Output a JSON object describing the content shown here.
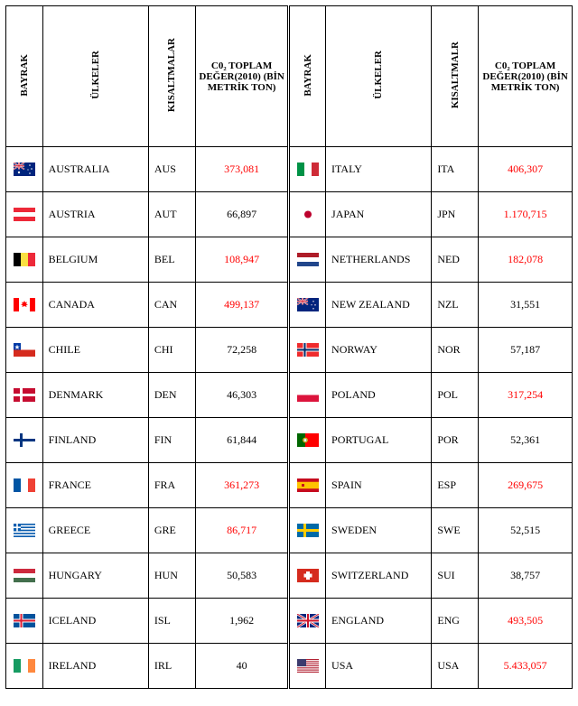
{
  "headers": {
    "flag": "BAYRAK",
    "countries": "ÜLKELER",
    "abbr_left": "KISALTMALAR",
    "abbr_right": "KISALTMALR",
    "value": "C0₂ TOPLAM DEĞER(2010) (BİN METRİK TON)"
  },
  "rows": [
    {
      "l_flag": "AUS",
      "l_country": "AUSTRALIA",
      "l_abbr": "AUS",
      "l_val": "373,081",
      "l_red": true,
      "r_flag": "ITA",
      "r_country": "ITALY",
      "r_abbr": "ITA",
      "r_val": "406,307",
      "r_red": true
    },
    {
      "l_flag": "AUT",
      "l_country": "AUSTRIA",
      "l_abbr": "AUT",
      "l_val": "66,897",
      "l_red": false,
      "r_flag": "JPN",
      "r_country": "JAPAN",
      "r_abbr": "JPN",
      "r_val": "1.170,715",
      "r_red": true
    },
    {
      "l_flag": "BEL",
      "l_country": "BELGIUM",
      "l_abbr": "BEL",
      "l_val": "108,947",
      "l_red": true,
      "r_flag": "NED",
      "r_country": "NETHERLANDS",
      "r_abbr": "NED",
      "r_val": "182,078",
      "r_red": true
    },
    {
      "l_flag": "CAN",
      "l_country": "CANADA",
      "l_abbr": "CAN",
      "l_val": "499,137",
      "l_red": true,
      "r_flag": "NZL",
      "r_country": "NEW ZEALAND",
      "r_abbr": "NZL",
      "r_val": "31,551",
      "r_red": false
    },
    {
      "l_flag": "CHI",
      "l_country": "CHILE",
      "l_abbr": "CHI",
      "l_val": "72,258",
      "l_red": false,
      "r_flag": "NOR",
      "r_country": "NORWAY",
      "r_abbr": "NOR",
      "r_val": "57,187",
      "r_red": false
    },
    {
      "l_flag": "DEN",
      "l_country": "DENMARK",
      "l_abbr": "DEN",
      "l_val": "46,303",
      "l_red": false,
      "r_flag": "POL",
      "r_country": "POLAND",
      "r_abbr": "POL",
      "r_val": "317,254",
      "r_red": true
    },
    {
      "l_flag": "FIN",
      "l_country": "FINLAND",
      "l_abbr": "FIN",
      "l_val": "61,844",
      "l_red": false,
      "r_flag": "POR",
      "r_country": "PORTUGAL",
      "r_abbr": "POR",
      "r_val": "52,361",
      "r_red": false
    },
    {
      "l_flag": "FRA",
      "l_country": "FRANCE",
      "l_abbr": "FRA",
      "l_val": "361,273",
      "l_red": true,
      "r_flag": "ESP",
      "r_country": "SPAIN",
      "r_abbr": "ESP",
      "r_val": "269,675",
      "r_red": true
    },
    {
      "l_flag": "GRE",
      "l_country": "GREECE",
      "l_abbr": "GRE",
      "l_val": "86,717",
      "l_red": true,
      "r_flag": "SWE",
      "r_country": "SWEDEN",
      "r_abbr": "SWE",
      "r_val": "52,515",
      "r_red": false
    },
    {
      "l_flag": "HUN",
      "l_country": "HUNGARY",
      "l_abbr": "HUN",
      "l_val": "50,583",
      "l_red": false,
      "r_flag": "SUI",
      "r_country": "SWITZERLAND",
      "r_abbr": "SUI",
      "r_val": "38,757",
      "r_red": false
    },
    {
      "l_flag": "ISL",
      "l_country": "ICELAND",
      "l_abbr": "ISL",
      "l_val": "1,962",
      "l_red": false,
      "r_flag": "ENG",
      "r_country": "ENGLAND",
      "r_abbr": "ENG",
      "r_val": "493,505",
      "r_red": true
    },
    {
      "l_flag": "IRL",
      "l_country": "IRELAND",
      "l_abbr": "IRL",
      "l_val": "40",
      "l_red": false,
      "r_flag": "USA",
      "r_country": "USA",
      "r_abbr": "USA",
      "r_val": "5.433,057",
      "r_red": true
    }
  ]
}
